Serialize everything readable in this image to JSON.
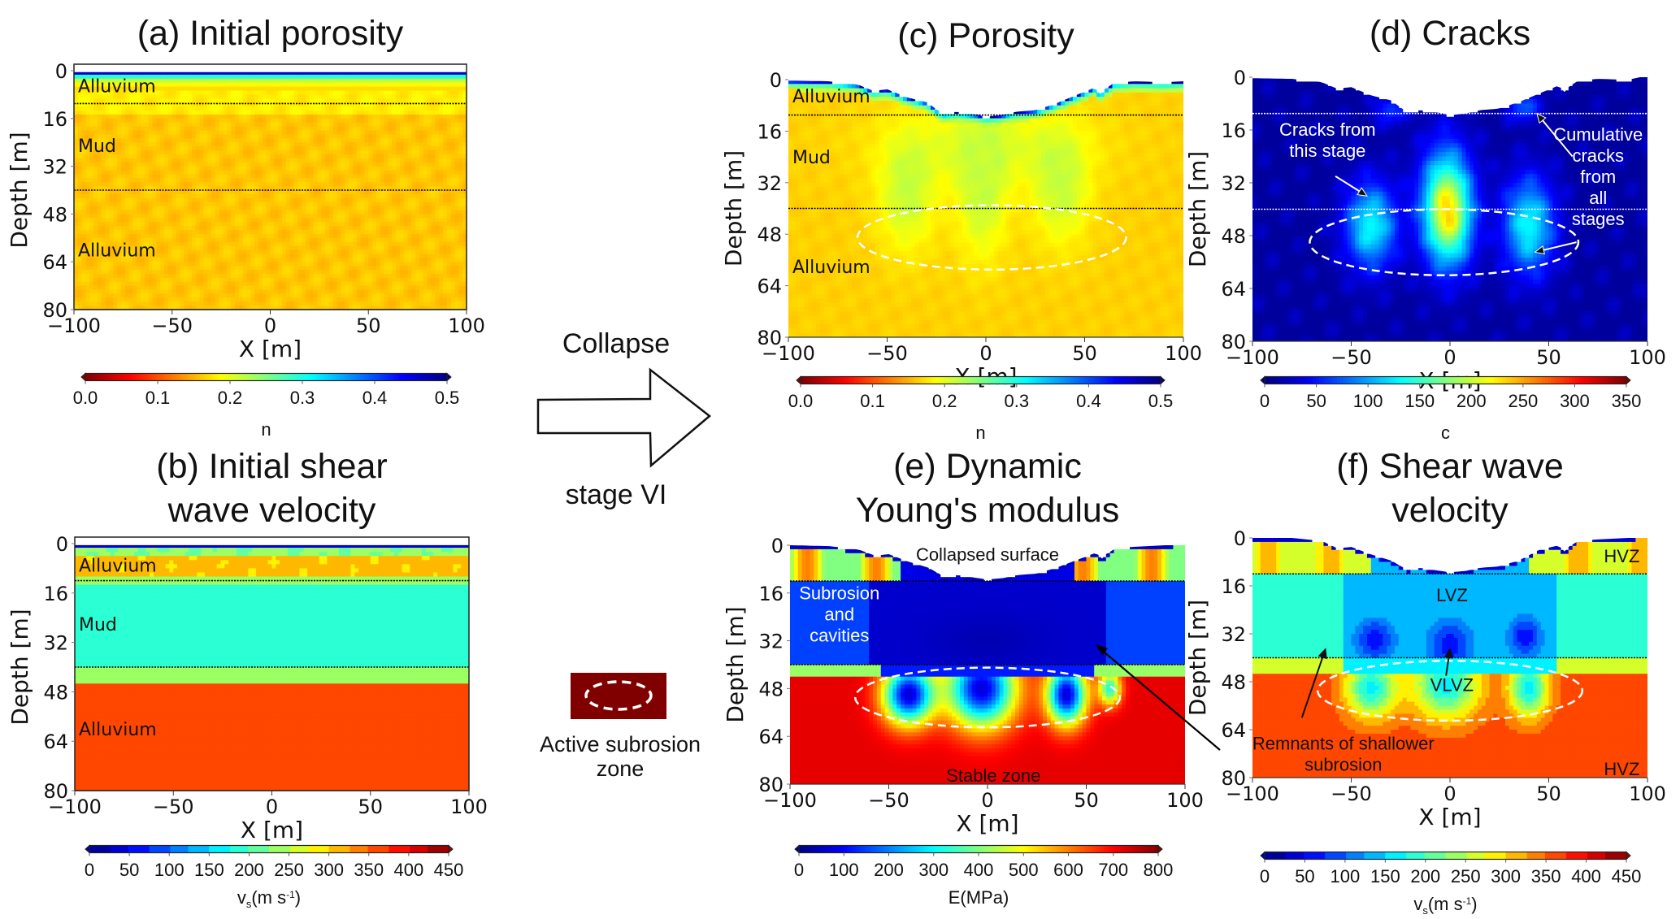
{
  "figure": {
    "middle": {
      "arrow_top_label": "Collapse",
      "arrow_bottom_label": "stage VI",
      "legend_label_line1": "Active subrosion",
      "legend_label_line2": "zone",
      "legend_fill": "#800000",
      "legend_ring": "#ffffff"
    },
    "long_arrow": {
      "from_panel": "f",
      "to_panel": "e",
      "color": "#000000"
    }
  },
  "chart_data": [
    {
      "id": "a",
      "type": "heatmap",
      "title": "(a) Initial porosity",
      "xlabel": "X [m]",
      "ylabel": "Depth [m]",
      "xlim": [
        -100,
        100
      ],
      "ylim": [
        0,
        80
      ],
      "xticks": [
        "−100",
        "−50",
        "0",
        "50",
        "100"
      ],
      "xtick_values": [
        -100,
        -50,
        0,
        50,
        100
      ],
      "yticks": [
        "0",
        "16",
        "32",
        "48",
        "64",
        "80"
      ],
      "ytick_values": [
        0,
        16,
        32,
        48,
        64,
        80
      ],
      "layer_boundaries_depth_m": [
        11,
        40
      ],
      "boundary_color": "#000000",
      "layer_labels": [
        {
          "text": "Alluvium",
          "depth_m": 5
        },
        {
          "text": "Mud",
          "depth_m": 25
        },
        {
          "text": "Alluvium",
          "depth_m": 60
        }
      ],
      "surface_depth_profile_m": {
        "x": [
          -100,
          100
        ],
        "depth": [
          0.5,
          0.5
        ]
      },
      "field": "porosity_initial",
      "colorbar": {
        "label": "n",
        "min": 0.0,
        "max": 0.5,
        "ticks": [
          "0.0",
          "0.1",
          "0.2",
          "0.3",
          "0.4",
          "0.5"
        ],
        "colormap": "jet_reversed",
        "extend_marks": true
      },
      "annotations": []
    },
    {
      "id": "b",
      "type": "heatmap",
      "title_lines": [
        "(b) Initial shear",
        "wave velocity"
      ],
      "xlabel": "X [m]",
      "ylabel": "Depth [m]",
      "xlim": [
        -100,
        100
      ],
      "ylim": [
        0,
        80
      ],
      "xticks": [
        "−100",
        "−50",
        "0",
        "50",
        "100"
      ],
      "xtick_values": [
        -100,
        -50,
        0,
        50,
        100
      ],
      "yticks": [
        "0",
        "16",
        "32",
        "48",
        "64",
        "80"
      ],
      "ytick_values": [
        0,
        16,
        32,
        48,
        64,
        80
      ],
      "layer_boundaries_depth_m": [
        12,
        40
      ],
      "boundary_color": "#000000",
      "layer_labels": [
        {
          "text": "Alluvium",
          "depth_m": 7
        },
        {
          "text": "Mud",
          "depth_m": 26
        },
        {
          "text": "Alluvium",
          "depth_m": 60
        }
      ],
      "surface_depth_profile_m": {
        "x": [
          -100,
          100
        ],
        "depth": [
          0.5,
          0.5
        ]
      },
      "field": "vs_initial",
      "colorbar": {
        "label": "v_s(m s^-1)",
        "label_parts": [
          "v",
          "s",
          "(m s",
          "-1",
          ")"
        ],
        "min": 0,
        "max": 450,
        "ticks": [
          "0",
          "50",
          "100",
          "150",
          "200",
          "250",
          "300",
          "350",
          "400",
          "450"
        ],
        "colormap": "jet_discrete_18",
        "extend_marks": true
      },
      "annotations": []
    },
    {
      "id": "c",
      "type": "heatmap",
      "title": "(c) Porosity",
      "xlabel": "X [m]",
      "ylabel": "Depth [m]",
      "xlim": [
        -100,
        100
      ],
      "ylim": [
        0,
        80
      ],
      "xticks": [
        "−100",
        "−50",
        "0",
        "50",
        "100"
      ],
      "xtick_values": [
        -100,
        -50,
        0,
        50,
        100
      ],
      "yticks": [
        "0",
        "16",
        "32",
        "48",
        "64",
        "80"
      ],
      "ytick_values": [
        0,
        16,
        32,
        48,
        64,
        80
      ],
      "layer_boundaries_depth_m": [
        11,
        40
      ],
      "boundary_color": "#000000",
      "layer_labels": [
        {
          "text": "Alluvium",
          "depth_m": 5
        },
        {
          "text": "Mud",
          "depth_m": 24
        },
        {
          "text": "Alluvium",
          "depth_m": 58
        }
      ],
      "surface_depth_profile_m": {
        "x": [
          -100,
          -80,
          -65,
          -57,
          -50,
          -40,
          -30,
          -22,
          -15,
          -5,
          0,
          8,
          15,
          25,
          35,
          45,
          55,
          58,
          60,
          65,
          75,
          90,
          100
        ],
        "depth": [
          0.3,
          0.5,
          1.5,
          3.5,
          3.0,
          5.5,
          7.0,
          10.5,
          10.0,
          10.8,
          11.5,
          11.0,
          10.0,
          9.5,
          7.5,
          5.0,
          2.5,
          4.5,
          3.0,
          1.0,
          0.5,
          0.8,
          0.5
        ]
      },
      "field": "porosity_collapsed",
      "colorbar": {
        "label": "n",
        "min": 0.0,
        "max": 0.5,
        "ticks": [
          "0.0",
          "0.1",
          "0.2",
          "0.3",
          "0.4",
          "0.5"
        ],
        "colormap": "jet_reversed",
        "extend_marks": true
      },
      "subrosion_ellipse": {
        "cx_m": 3,
        "cy_m": 49,
        "rx_m": 68,
        "ry_m": 10,
        "color": "#ffffff"
      },
      "annotations": []
    },
    {
      "id": "d",
      "type": "heatmap",
      "title": "(d) Cracks",
      "xlabel": "X [m]",
      "ylabel": "Depth [m]",
      "xlim": [
        -100,
        100
      ],
      "ylim": [
        0,
        80
      ],
      "xticks": [
        "−100",
        "−50",
        "0",
        "50",
        "100"
      ],
      "xtick_values": [
        -100,
        -50,
        0,
        50,
        100
      ],
      "yticks": [
        "0",
        "16",
        "32",
        "48",
        "64",
        "80"
      ],
      "ytick_values": [
        0,
        16,
        32,
        48,
        64,
        80
      ],
      "layer_boundaries_depth_m": [
        11,
        40
      ],
      "boundary_color": "#ffffff",
      "layer_labels": [],
      "surface_depth_profile_m": {
        "x": [
          -100,
          -80,
          -65,
          -57,
          -50,
          -40,
          -30,
          -22,
          -15,
          -5,
          0,
          8,
          15,
          25,
          35,
          45,
          55,
          58,
          60,
          65,
          75,
          90,
          100
        ],
        "depth": [
          0.3,
          0.5,
          1.5,
          3.5,
          3.0,
          5.5,
          7.0,
          10.5,
          10.0,
          10.8,
          11.5,
          11.0,
          10.0,
          9.5,
          7.5,
          5.0,
          2.5,
          4.5,
          3.0,
          1.0,
          0.5,
          0.8,
          -0.5
        ]
      },
      "field": "cracks",
      "colorbar": {
        "label": "c",
        "min": 0,
        "max": 350,
        "ticks": [
          "0",
          "50",
          "100",
          "150",
          "200",
          "250",
          "300",
          "350"
        ],
        "colormap": "jet",
        "extend_marks": true
      },
      "subrosion_ellipse": {
        "cx_m": -3,
        "cy_m": 50,
        "rx_m": 68,
        "ry_m": 10,
        "color": "#ffffff"
      },
      "annotations": [
        {
          "lines": [
            "Cracks from",
            "this stage"
          ],
          "x_m": -62,
          "depth_m": 19,
          "color": "#ffffff",
          "arrow": {
            "from": [
              -58,
              30
            ],
            "to": [
              -42,
              36
            ]
          }
        },
        {
          "lines": [
            "Cumulative",
            "cracks",
            "from",
            "all",
            "stages"
          ],
          "x_m": 75,
          "depth_m": 30,
          "color": "#ffffff",
          "arrows": [
            {
              "from": [
                62,
                24
              ],
              "to": [
                44,
                11
              ]
            },
            {
              "from": [
                64,
                50
              ],
              "to": [
                43,
                53
              ]
            }
          ]
        }
      ]
    },
    {
      "id": "e",
      "type": "heatmap",
      "title_lines": [
        "(e) Dynamic",
        "Young's modulus"
      ],
      "xlabel": "X [m]",
      "ylabel": "Depth [m]",
      "xlim": [
        -100,
        100
      ],
      "ylim": [
        0,
        80
      ],
      "xticks": [
        "−100",
        "−50",
        "0",
        "50",
        "100"
      ],
      "xtick_values": [
        -100,
        -50,
        0,
        50,
        100
      ],
      "yticks": [
        "0",
        "16",
        "32",
        "48",
        "64",
        "80"
      ],
      "ytick_values": [
        0,
        16,
        32,
        48,
        64,
        80
      ],
      "layer_boundaries_depth_m": [
        12,
        40
      ],
      "boundary_color": "#000000",
      "layer_labels": [],
      "surface_depth_profile_m": {
        "x": [
          -100,
          -80,
          -65,
          -57,
          -50,
          -40,
          -30,
          -22,
          -15,
          -5,
          0,
          8,
          15,
          25,
          35,
          45,
          55,
          58,
          60,
          65,
          75,
          90,
          100
        ],
        "depth": [
          0.0,
          0.3,
          1.5,
          3.5,
          3.0,
          5.5,
          7.5,
          10.5,
          10.0,
          11.0,
          11.5,
          11.0,
          10.0,
          9.5,
          7.5,
          5.0,
          2.5,
          4.5,
          3.0,
          1.0,
          0.5,
          0.0,
          -0.8
        ]
      },
      "field": "youngs_modulus",
      "colorbar": {
        "label": "E(MPa)",
        "min": 0,
        "max": 800,
        "ticks": [
          "0",
          "100",
          "200",
          "300",
          "400",
          "500",
          "600",
          "700",
          "800"
        ],
        "colormap": "jet",
        "extend_marks": true
      },
      "subrosion_ellipse": {
        "cx_m": 0,
        "cy_m": 51,
        "rx_m": 67,
        "ry_m": 10,
        "color": "#ffffff"
      },
      "annotations": [
        {
          "lines": [
            "Collapsed surface"
          ],
          "x_m": 0,
          "depth_m": 3,
          "color": "#111111"
        },
        {
          "lines": [
            "Subrosion",
            "and",
            "cavities"
          ],
          "x_m": -75,
          "depth_m": 23,
          "color": "#ffffff"
        },
        {
          "lines": [
            "Stable zone"
          ],
          "x_m": 3,
          "depth_m": 77,
          "color": "#111111"
        }
      ]
    },
    {
      "id": "f",
      "type": "heatmap",
      "title_lines": [
        "(f) Shear wave",
        "velocity"
      ],
      "xlabel": "X [m]",
      "ylabel": "Depth [m]",
      "xlim": [
        -100,
        100
      ],
      "ylim": [
        0,
        80
      ],
      "xticks": [
        "−100",
        "−50",
        "0",
        "50",
        "100"
      ],
      "xtick_values": [
        -100,
        -50,
        0,
        50,
        100
      ],
      "yticks": [
        "0",
        "16",
        "32",
        "48",
        "64",
        "80"
      ],
      "ytick_values": [
        0,
        16,
        32,
        48,
        64,
        80
      ],
      "layer_boundaries_depth_m": [
        12,
        40
      ],
      "boundary_color": "#000000",
      "layer_labels": [],
      "surface_depth_profile_m": {
        "x": [
          -100,
          -80,
          -65,
          -57,
          -50,
          -40,
          -30,
          -22,
          -15,
          -5,
          0,
          8,
          15,
          25,
          35,
          45,
          55,
          58,
          60,
          65,
          75,
          90,
          100
        ],
        "depth": [
          0.0,
          0.0,
          1.0,
          3.5,
          3.0,
          5.5,
          7.5,
          10.5,
          10.0,
          11.0,
          11.5,
          11.0,
          10.0,
          9.5,
          7.5,
          4.0,
          2.5,
          4.5,
          3.0,
          1.0,
          0.5,
          0.0,
          -0.8
        ]
      },
      "field": "vs_collapsed",
      "colorbar": {
        "label": "v_s(m s^-1)",
        "label_parts": [
          "v",
          "s",
          "(m s",
          "-1",
          ")"
        ],
        "min": 0,
        "max": 450,
        "ticks": [
          "0",
          "50",
          "100",
          "150",
          "200",
          "250",
          "300",
          "350",
          "400",
          "450"
        ],
        "colormap": "jet_discrete_18",
        "extend_marks": true
      },
      "subrosion_ellipse": {
        "cx_m": 0,
        "cy_m": 51,
        "rx_m": 67,
        "ry_m": 10,
        "color": "#ffffff"
      },
      "annotations": [
        {
          "lines": [
            "HVZ"
          ],
          "x_m": 87,
          "depth_m": 6,
          "color": "#111111"
        },
        {
          "lines": [
            "LVZ"
          ],
          "x_m": 1,
          "depth_m": 19,
          "color": "#111111"
        },
        {
          "lines": [
            "VLVZ"
          ],
          "x_m": 1,
          "depth_m": 49,
          "color": "#111111",
          "arrow": {
            "from": [
              -2,
              46
            ],
            "to": [
              0,
              37
            ]
          }
        },
        {
          "lines": [
            "Remnants of shallower",
            "subrosion"
          ],
          "x_m": -54,
          "depth_m": 72,
          "color": "#111111",
          "arrow": {
            "from": [
              -75,
              60
            ],
            "to": [
              -63,
              37
            ]
          }
        },
        {
          "lines": [
            "HVZ"
          ],
          "x_m": 87,
          "depth_m": 77,
          "color": "#111111"
        }
      ]
    }
  ]
}
